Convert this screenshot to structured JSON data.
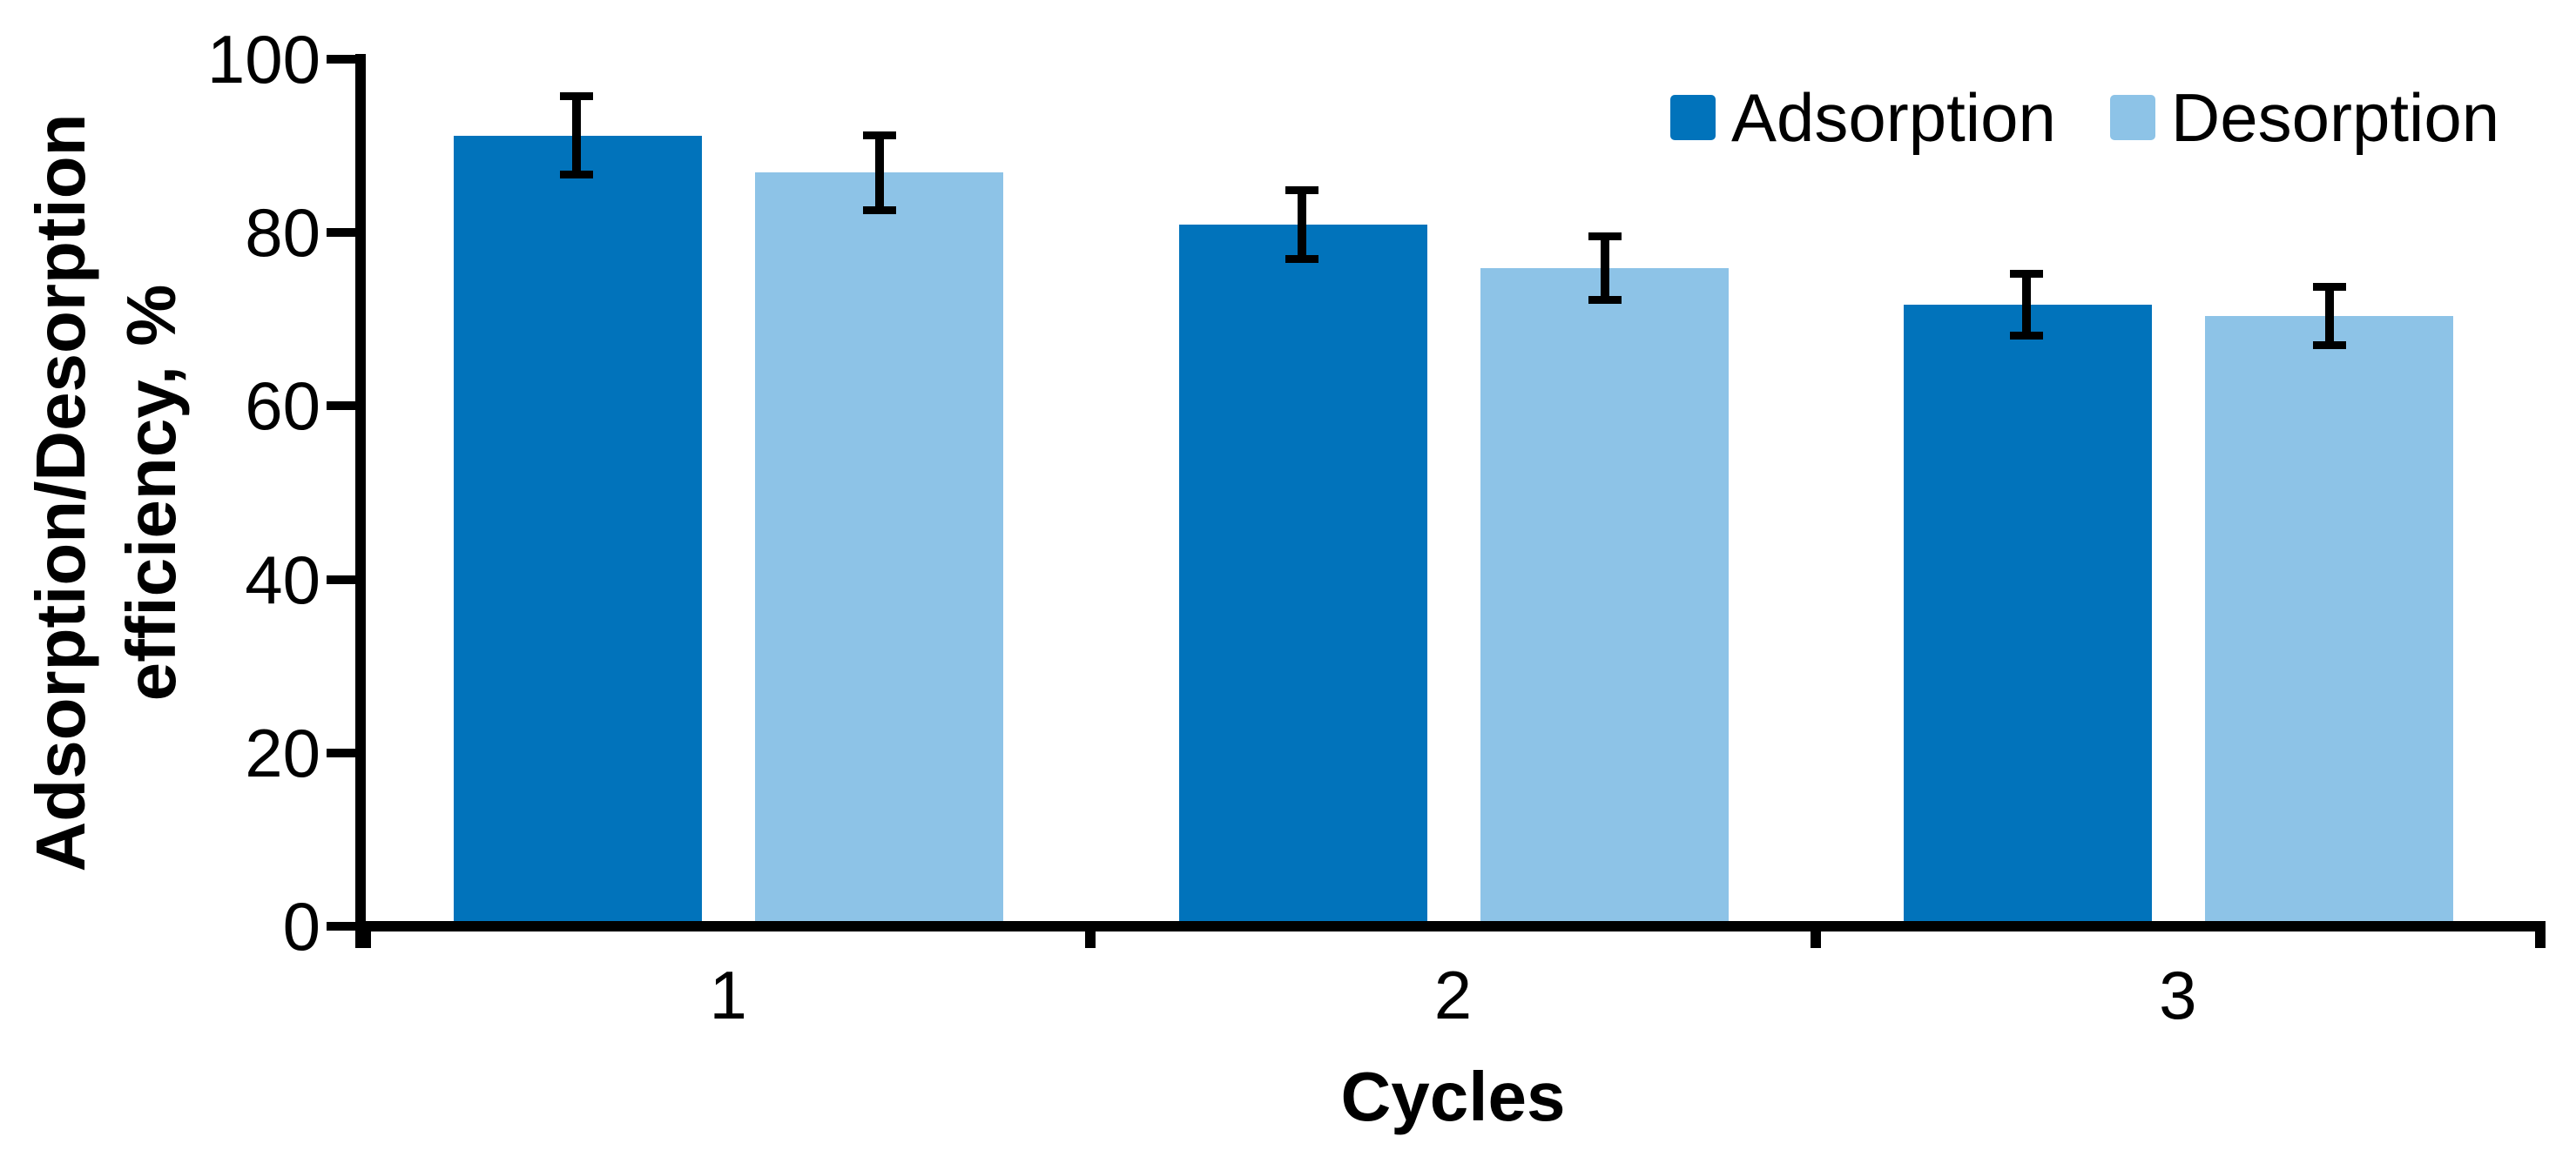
{
  "figure": {
    "y_axis_title_line1": "Adsorption/Desorption",
    "y_axis_title_line2": "efficiency, %",
    "x_axis_title": "Cycles"
  },
  "chart_data": {
    "type": "bar",
    "title": "",
    "xlabel": "Cycles",
    "ylabel": "Adsorption/Desorption efficiency, %",
    "categories": [
      "1",
      "2",
      "3"
    ],
    "series": [
      {
        "name": "Adsorption",
        "color": "#0173BB",
        "values": [
          91.2,
          80.9,
          71.7
        ],
        "error_bars": [
          4.6,
          4.0,
          3.6
        ]
      },
      {
        "name": "Desorption",
        "color": "#8DC3E7",
        "values": [
          86.9,
          75.9,
          70.4
        ],
        "error_bars": [
          4.4,
          3.7,
          3.4
        ]
      }
    ],
    "ylim": [
      0,
      100
    ],
    "yticks": [
      0,
      20,
      40,
      60,
      80,
      100
    ],
    "grid": false,
    "legend_position": "top-right",
    "error_bar_color": "#000000",
    "axis_color": "#000000",
    "background_color": "#FFFFFF"
  }
}
